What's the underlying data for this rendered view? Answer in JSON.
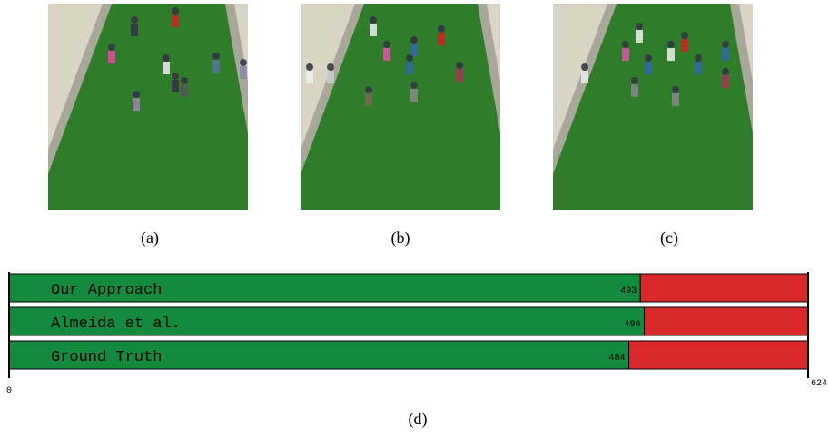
{
  "subfigures": [
    {
      "caption": "(a)",
      "scene": "crowd-on-lawn-a"
    },
    {
      "caption": "(b)",
      "scene": "crowd-on-lawn-b"
    },
    {
      "caption": "(c)",
      "scene": "crowd-on-lawn-c"
    }
  ],
  "figure_caption": "(d)",
  "colors": {
    "green": "#138a3e",
    "red": "#d8282a",
    "lawn": "#2f7d2a",
    "path": "#d9d4c4"
  },
  "chart_data": {
    "type": "bar",
    "orientation": "horizontal-stacked",
    "xlim": [
      0,
      624
    ],
    "x_tick_labels": [
      "0",
      "624"
    ],
    "series": [
      {
        "label": "Our Approach",
        "value": 493,
        "value_label": "493"
      },
      {
        "label": "Almeida et al.",
        "value": 496,
        "value_label": "496"
      },
      {
        "label": "Ground Truth",
        "value": 484,
        "value_label": "484"
      }
    ],
    "colors": {
      "filled": "#138a3e",
      "remainder": "#d8282a"
    }
  }
}
